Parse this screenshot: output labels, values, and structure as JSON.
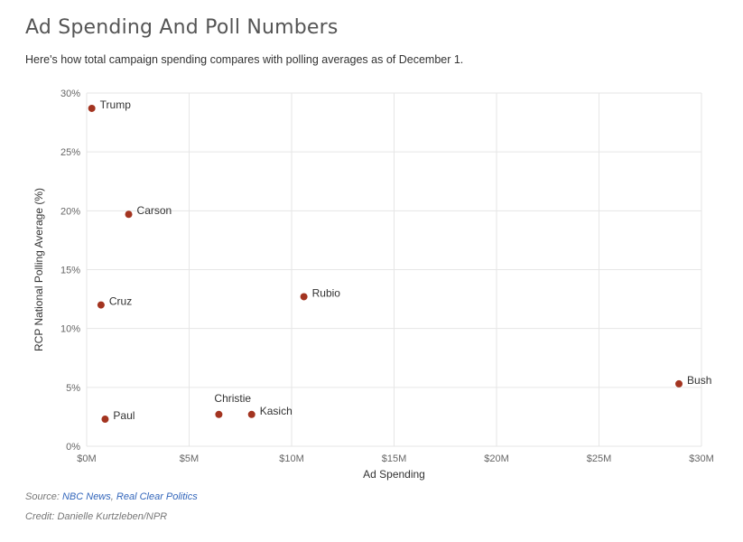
{
  "header": {
    "title": "Ad Spending And Poll Numbers",
    "subtitle": "Here's how total campaign spending compares with polling averages as of December 1."
  },
  "footer": {
    "source_prefix": "Source: ",
    "source_link_1": "NBC News",
    "source_sep": ", ",
    "source_link_2": "Real Clear Politics",
    "credit": "Credit: Danielle Kurtzleben/NPR"
  },
  "colors": {
    "point": "#a33420",
    "grid": "#e6e6e6"
  },
  "chart_data": {
    "type": "scatter",
    "title": "Ad Spending And Poll Numbers",
    "xlabel": "Ad Spending",
    "ylabel": "RCP National Polling Average (%)",
    "xlim": [
      0,
      30000000
    ],
    "ylim": [
      0,
      30
    ],
    "x_ticks": [
      0,
      5000000,
      10000000,
      15000000,
      20000000,
      25000000,
      30000000
    ],
    "x_tick_labels": [
      "$0M",
      "$5M",
      "$10M",
      "$15M",
      "$20M",
      "$25M",
      "$30M"
    ],
    "y_ticks": [
      0,
      5,
      10,
      15,
      20,
      25,
      30
    ],
    "y_tick_labels": [
      "0%",
      "5%",
      "10%",
      "15%",
      "20%",
      "25%",
      "30%"
    ],
    "grid": true,
    "points": [
      {
        "label": "Trump",
        "x": 250000,
        "y": 28.7
      },
      {
        "label": "Carson",
        "x": 2050000,
        "y": 19.7
      },
      {
        "label": "Rubio",
        "x": 10600000,
        "y": 12.7
      },
      {
        "label": "Cruz",
        "x": 700000,
        "y": 12.0
      },
      {
        "label": "Bush",
        "x": 28900000,
        "y": 5.3
      },
      {
        "label": "Christie",
        "x": 6450000,
        "y": 2.7
      },
      {
        "label": "Kasich",
        "x": 8050000,
        "y": 2.7
      },
      {
        "label": "Paul",
        "x": 900000,
        "y": 2.3
      }
    ]
  }
}
